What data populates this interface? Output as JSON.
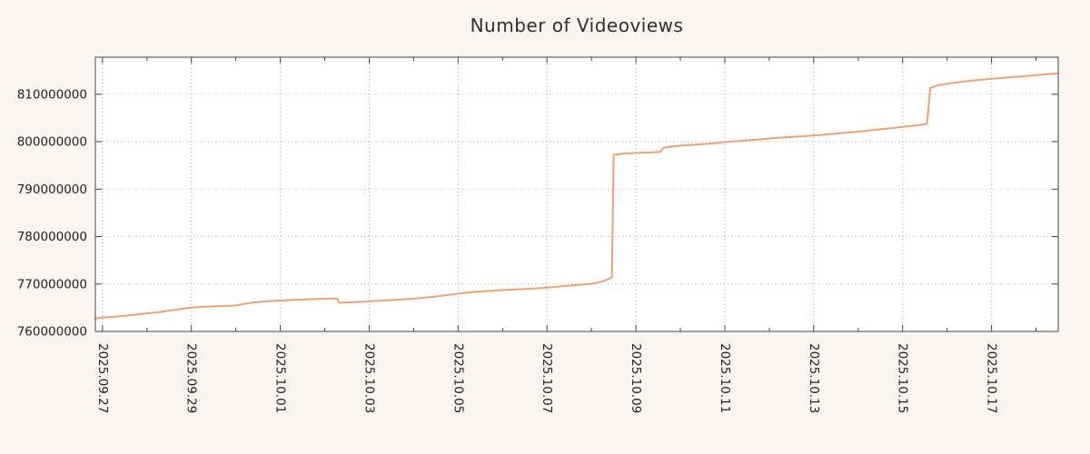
{
  "title": "Number of Videoviews",
  "colors": {
    "background": "#fcf3ed",
    "plot_bg": "#ffffff",
    "line": "#f0a172",
    "border": "#444444",
    "grid_h": "#b9a9a9",
    "grid_v": "#cc8f8f",
    "text": "#222222"
  },
  "chart_data": {
    "type": "line",
    "title": "Number of Videoviews",
    "xlabel": "",
    "ylabel": "",
    "grid": true,
    "legend": "none",
    "x_ticks": [
      "2025.09.27",
      "2025.09.29",
      "2025.10.01",
      "2025.10.03",
      "2025.10.05",
      "2025.10.07",
      "2025.10.09",
      "2025.10.11",
      "2025.10.13",
      "2025.10.15",
      "2025.10.17"
    ],
    "x_tick_days": [
      0,
      2,
      4,
      6,
      8,
      10,
      12,
      14,
      16,
      18,
      20
    ],
    "xlim_days": [
      -0.16,
      21.5
    ],
    "y_ticks": [
      760000000,
      770000000,
      780000000,
      790000000,
      800000000,
      810000000
    ],
    "ylim": [
      760000000,
      817800000
    ],
    "series": [
      {
        "name": "videoviews",
        "color": "#f0a172",
        "points": [
          [
            -0.16,
            762700000
          ],
          [
            0.0,
            762950000
          ],
          [
            0.2,
            763050000
          ],
          [
            0.4,
            763200000
          ],
          [
            0.7,
            763500000
          ],
          [
            1.0,
            763800000
          ],
          [
            1.3,
            764100000
          ],
          [
            1.6,
            764500000
          ],
          [
            1.9,
            764900000
          ],
          [
            2.1,
            765100000
          ],
          [
            2.4,
            765250000
          ],
          [
            2.7,
            765350000
          ],
          [
            3.0,
            765450000
          ],
          [
            3.2,
            765800000
          ],
          [
            3.4,
            766100000
          ],
          [
            3.7,
            766350000
          ],
          [
            4.0,
            766500000
          ],
          [
            4.3,
            766650000
          ],
          [
            4.7,
            766800000
          ],
          [
            5.0,
            766900000
          ],
          [
            5.28,
            766950000
          ],
          [
            5.32,
            766050000
          ],
          [
            5.6,
            766150000
          ],
          [
            5.9,
            766300000
          ],
          [
            6.2,
            766450000
          ],
          [
            6.6,
            766650000
          ],
          [
            7.0,
            766900000
          ],
          [
            7.4,
            767250000
          ],
          [
            7.8,
            767700000
          ],
          [
            8.2,
            768200000
          ],
          [
            8.6,
            768500000
          ],
          [
            9.0,
            768700000
          ],
          [
            9.4,
            768900000
          ],
          [
            9.8,
            769100000
          ],
          [
            10.2,
            769400000
          ],
          [
            10.6,
            769700000
          ],
          [
            11.0,
            770050000
          ],
          [
            11.2,
            770400000
          ],
          [
            11.35,
            770900000
          ],
          [
            11.46,
            771400000
          ],
          [
            11.5,
            797200000
          ],
          [
            11.7,
            797450000
          ],
          [
            11.9,
            797550000
          ],
          [
            12.1,
            797650000
          ],
          [
            12.4,
            797750000
          ],
          [
            12.55,
            797850000
          ],
          [
            12.62,
            798700000
          ],
          [
            12.8,
            798950000
          ],
          [
            13.0,
            799150000
          ],
          [
            13.4,
            799400000
          ],
          [
            13.8,
            799700000
          ],
          [
            14.0,
            799900000
          ],
          [
            14.4,
            800200000
          ],
          [
            14.8,
            800500000
          ],
          [
            15.2,
            800800000
          ],
          [
            15.6,
            801050000
          ],
          [
            16.0,
            801300000
          ],
          [
            16.5,
            801700000
          ],
          [
            17.0,
            802100000
          ],
          [
            17.5,
            802600000
          ],
          [
            18.0,
            803100000
          ],
          [
            18.3,
            803400000
          ],
          [
            18.55,
            803750000
          ],
          [
            18.62,
            811300000
          ],
          [
            18.8,
            811900000
          ],
          [
            19.0,
            812200000
          ],
          [
            19.4,
            812700000
          ],
          [
            19.8,
            813100000
          ],
          [
            20.2,
            813400000
          ],
          [
            20.6,
            813700000
          ],
          [
            21.0,
            814000000
          ],
          [
            21.3,
            814250000
          ],
          [
            21.5,
            814400000
          ]
        ]
      }
    ]
  }
}
